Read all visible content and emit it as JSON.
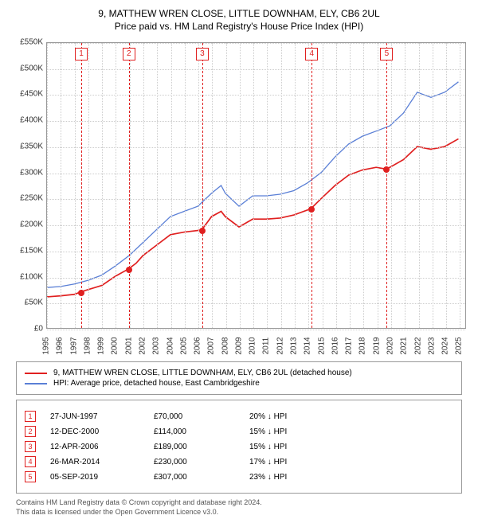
{
  "title": "9, MATTHEW WREN CLOSE, LITTLE DOWNHAM, ELY, CB6 2UL",
  "subtitle": "Price paid vs. HM Land Registry's House Price Index (HPI)",
  "chart": {
    "type": "line",
    "background_color": "#ffffff",
    "grid_color": "#cccccc",
    "axis_color": "#999999",
    "text_color": "#333333",
    "y": {
      "min": 0,
      "max": 550000,
      "step": 50000,
      "ticks": [
        "£0",
        "£50K",
        "£100K",
        "£150K",
        "£200K",
        "£250K",
        "£300K",
        "£350K",
        "£400K",
        "£450K",
        "£500K",
        "£550K"
      ],
      "label_fontsize": 10
    },
    "x": {
      "min": 1995,
      "max": 2025.5,
      "ticks": [
        1995,
        1996,
        1997,
        1998,
        1999,
        2000,
        2001,
        2002,
        2003,
        2004,
        2005,
        2006,
        2007,
        2008,
        2009,
        2010,
        2011,
        2012,
        2013,
        2014,
        2015,
        2016,
        2017,
        2018,
        2019,
        2020,
        2021,
        2022,
        2023,
        2024,
        2025
      ],
      "label_fontsize": 10
    },
    "series": {
      "property": {
        "label": "9, MATTHEW WREN CLOSE, LITTLE DOWNHAM, ELY, CB6 2UL (detached house)",
        "color": "#e02020",
        "line_width": 1.7,
        "data": [
          [
            1995,
            60000
          ],
          [
            1996,
            62000
          ],
          [
            1997,
            65000
          ],
          [
            1997.5,
            70000
          ],
          [
            1998,
            74000
          ],
          [
            1999,
            82000
          ],
          [
            2000,
            100000
          ],
          [
            2000.95,
            114000
          ],
          [
            2001.5,
            125000
          ],
          [
            2002,
            140000
          ],
          [
            2003,
            160000
          ],
          [
            2004,
            180000
          ],
          [
            2005,
            185000
          ],
          [
            2006.28,
            189000
          ],
          [
            2007,
            215000
          ],
          [
            2007.7,
            225000
          ],
          [
            2008,
            215000
          ],
          [
            2009,
            195000
          ],
          [
            2010,
            210000
          ],
          [
            2011,
            210000
          ],
          [
            2012,
            212000
          ],
          [
            2013,
            218000
          ],
          [
            2014.23,
            230000
          ],
          [
            2015,
            250000
          ],
          [
            2016,
            275000
          ],
          [
            2017,
            295000
          ],
          [
            2018,
            305000
          ],
          [
            2019,
            310000
          ],
          [
            2019.68,
            307000
          ],
          [
            2020,
            310000
          ],
          [
            2021,
            325000
          ],
          [
            2022,
            350000
          ],
          [
            2023,
            345000
          ],
          [
            2024,
            350000
          ],
          [
            2025,
            365000
          ]
        ]
      },
      "hpi": {
        "label": "HPI: Average price, detached house, East Cambridgeshire",
        "color": "#5a7fd6",
        "line_width": 1.3,
        "data": [
          [
            1995,
            78000
          ],
          [
            1996,
            80000
          ],
          [
            1997,
            85000
          ],
          [
            1998,
            92000
          ],
          [
            1999,
            102000
          ],
          [
            2000,
            120000
          ],
          [
            2001,
            140000
          ],
          [
            2002,
            165000
          ],
          [
            2003,
            190000
          ],
          [
            2004,
            215000
          ],
          [
            2005,
            225000
          ],
          [
            2006,
            235000
          ],
          [
            2007,
            260000
          ],
          [
            2007.7,
            275000
          ],
          [
            2008,
            260000
          ],
          [
            2009,
            235000
          ],
          [
            2010,
            255000
          ],
          [
            2011,
            255000
          ],
          [
            2012,
            258000
          ],
          [
            2013,
            265000
          ],
          [
            2014,
            280000
          ],
          [
            2015,
            300000
          ],
          [
            2016,
            330000
          ],
          [
            2017,
            355000
          ],
          [
            2018,
            370000
          ],
          [
            2019,
            380000
          ],
          [
            2020,
            390000
          ],
          [
            2021,
            415000
          ],
          [
            2022,
            455000
          ],
          [
            2023,
            445000
          ],
          [
            2024,
            455000
          ],
          [
            2025,
            475000
          ]
        ]
      }
    },
    "markers": {
      "line_color": "#e02020",
      "box_border": "#e02020",
      "box_text_color": "#e02020",
      "dot_color": "#e02020",
      "items": [
        {
          "n": "1",
          "year": 1997.49
        },
        {
          "n": "2",
          "year": 2000.95
        },
        {
          "n": "3",
          "year": 2006.28
        },
        {
          "n": "4",
          "year": 2014.23
        },
        {
          "n": "5",
          "year": 2019.68
        }
      ]
    },
    "sales_points": [
      {
        "year": 1997.49,
        "price": 70000
      },
      {
        "year": 2000.95,
        "price": 114000
      },
      {
        "year": 2006.28,
        "price": 189000
      },
      {
        "year": 2014.23,
        "price": 230000
      },
      {
        "year": 2019.68,
        "price": 307000
      }
    ]
  },
  "legend": {
    "property_label": "9, MATTHEW WREN CLOSE, LITTLE DOWNHAM, ELY, CB6 2UL (detached house)",
    "hpi_label": "HPI: Average price, detached house, East Cambridgeshire"
  },
  "table": {
    "rows": [
      {
        "n": "1",
        "date": "27-JUN-1997",
        "price": "£70,000",
        "diff": "20% ↓ HPI"
      },
      {
        "n": "2",
        "date": "12-DEC-2000",
        "price": "£114,000",
        "diff": "15% ↓ HPI"
      },
      {
        "n": "3",
        "date": "12-APR-2006",
        "price": "£189,000",
        "diff": "15% ↓ HPI"
      },
      {
        "n": "4",
        "date": "26-MAR-2014",
        "price": "£230,000",
        "diff": "17% ↓ HPI"
      },
      {
        "n": "5",
        "date": "05-SEP-2019",
        "price": "£307,000",
        "diff": "23% ↓ HPI"
      }
    ],
    "box_border": "#e02020"
  },
  "footer": {
    "line1": "Contains HM Land Registry data © Crown copyright and database right 2024.",
    "line2": "This data is licensed under the Open Government Licence v3.0."
  }
}
